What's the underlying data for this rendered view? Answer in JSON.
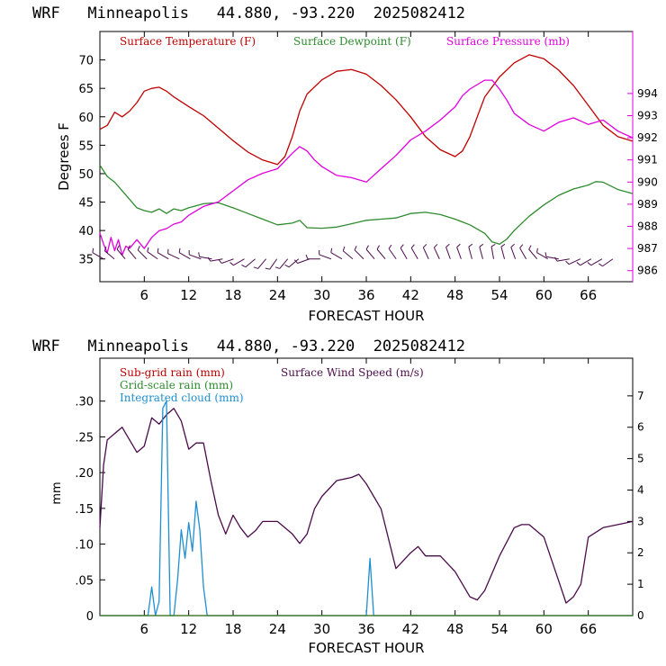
{
  "colors": {
    "temperature": "#c00000",
    "dewpoint": "#2e8b2e",
    "pressure": "#e000e0",
    "wind": "#4b0b4b",
    "cloud": "#1e8fd0",
    "subgrid": "#c00000",
    "gridscale": "#2e8b2e",
    "axis": "#000000",
    "barb": "#4b0b4b"
  },
  "chart_data": [
    {
      "type": "line",
      "title": "WRF   Minneapolis   44.880, -93.220  2025082412",
      "xlabel": "FORECAST HOUR",
      "ylabel": "Degrees F",
      "y2label": "",
      "xlim": [
        0,
        72
      ],
      "ylim": [
        31,
        75
      ],
      "y2lim": [
        985.5,
        996.8
      ],
      "x_ticks": [
        6,
        12,
        18,
        24,
        30,
        36,
        42,
        48,
        54,
        60,
        66
      ],
      "x_tick_labels": [
        "6",
        "12",
        "18",
        "24",
        "30",
        "36",
        "42",
        "48",
        "54",
        "60",
        "66"
      ],
      "y_ticks": [
        35,
        40,
        45,
        50,
        55,
        60,
        65,
        70
      ],
      "y_tick_labels": [
        "35",
        "40",
        "45",
        "50",
        "55",
        "60",
        "65",
        "70"
      ],
      "y2_ticks": [
        986,
        987,
        988,
        989,
        990,
        991,
        992,
        993,
        994
      ],
      "y2_tick_labels": [
        "986",
        "987",
        "988",
        "989",
        "990",
        "991",
        "992",
        "993",
        "994"
      ],
      "legend": [
        "Surface Temperature (F)",
        "Surface Dewpoint (F)",
        "Surface Pressure (mb)"
      ],
      "series": [
        {
          "name": "Surface Temperature (F)",
          "axis": "left",
          "x": [
            0,
            1,
            2,
            3,
            4,
            5,
            6,
            7,
            8,
            9,
            10,
            12,
            14,
            16,
            18,
            20,
            22,
            24,
            25,
            26,
            27,
            28,
            30,
            32,
            34,
            36,
            38,
            40,
            42,
            44,
            46,
            48,
            49,
            50,
            51,
            52,
            54,
            56,
            58,
            60,
            62,
            64,
            66,
            68,
            70,
            72
          ],
          "y": [
            57.8,
            58.5,
            60.8,
            60.0,
            61.0,
            62.5,
            64.5,
            65.0,
            65.2,
            64.5,
            63.5,
            61.8,
            60.2,
            58.0,
            55.8,
            53.8,
            52.4,
            51.6,
            53.0,
            56.5,
            61.0,
            64.0,
            66.5,
            68.0,
            68.3,
            67.5,
            65.5,
            63.0,
            60.0,
            56.5,
            54.2,
            53.0,
            54.0,
            56.5,
            60.0,
            63.5,
            67.0,
            69.5,
            70.9,
            70.2,
            68.2,
            65.5,
            62.0,
            58.5,
            56.5,
            55.7
          ]
        },
        {
          "name": "Surface Dewpoint (F)",
          "axis": "left",
          "x": [
            0,
            1,
            2,
            3,
            4,
            5,
            6,
            7,
            8,
            9,
            10,
            11,
            12,
            14,
            16,
            18,
            20,
            22,
            24,
            26,
            27,
            28,
            30,
            32,
            34,
            36,
            38,
            40,
            42,
            44,
            46,
            48,
            50,
            52,
            53,
            54,
            55,
            56,
            58,
            60,
            62,
            64,
            66,
            67,
            68,
            70,
            72
          ],
          "y": [
            51.5,
            49.5,
            48.5,
            47.0,
            45.5,
            44.0,
            43.5,
            43.2,
            43.8,
            43.0,
            43.8,
            43.5,
            44.0,
            44.7,
            44.9,
            44.0,
            43.0,
            42.0,
            41.0,
            41.3,
            41.8,
            40.5,
            40.4,
            40.6,
            41.2,
            41.8,
            42.0,
            42.2,
            43.0,
            43.2,
            42.8,
            42.0,
            41.0,
            39.5,
            38.0,
            37.6,
            38.5,
            40.0,
            42.5,
            44.5,
            46.2,
            47.3,
            48.0,
            48.6,
            48.5,
            47.2,
            46.5
          ]
        },
        {
          "name": "Surface Pressure (mb)",
          "axis": "right",
          "x": [
            0,
            0.5,
            1,
            1.5,
            2,
            2.5,
            3,
            3.5,
            4,
            5,
            6,
            7,
            8,
            9,
            10,
            11,
            12,
            13,
            14,
            16,
            18,
            20,
            22,
            24,
            26,
            27,
            28,
            29,
            30,
            32,
            34,
            36,
            38,
            40,
            42,
            44,
            46,
            48,
            49,
            50,
            51,
            52,
            53,
            54,
            55,
            56,
            58,
            60,
            62,
            64,
            66,
            68,
            70,
            72
          ],
          "y": [
            987.7,
            987.2,
            986.8,
            987.5,
            986.9,
            987.4,
            986.7,
            987.1,
            987.0,
            987.4,
            987.0,
            987.5,
            987.8,
            987.9,
            988.1,
            988.2,
            988.5,
            988.7,
            988.9,
            989.1,
            989.6,
            990.1,
            990.4,
            990.6,
            991.3,
            991.6,
            991.4,
            991.0,
            990.7,
            990.3,
            990.2,
            990.0,
            990.6,
            991.2,
            991.9,
            992.3,
            992.8,
            993.4,
            993.9,
            994.2,
            994.4,
            994.6,
            994.6,
            994.2,
            993.7,
            993.1,
            992.6,
            992.3,
            992.7,
            992.9,
            992.6,
            992.8,
            992.3,
            992.0
          ]
        }
      ],
      "wind_barb_directions_deg": [
        300,
        310,
        320,
        320,
        315,
        305,
        300,
        295,
        300,
        290,
        280,
        260,
        250,
        240,
        230,
        220,
        215,
        220,
        230,
        250,
        270,
        290,
        300,
        310,
        315,
        320,
        320,
        325,
        330,
        330,
        335,
        335,
        340,
        340,
        345,
        345,
        350,
        345,
        340,
        330,
        320,
        300,
        280,
        260,
        245,
        240,
        240,
        235
      ]
    },
    {
      "type": "line",
      "title": "WRF   Minneapolis   44.880, -93.220  2025082412",
      "xlabel": "FORECAST HOUR",
      "ylabel": "mm",
      "y2label": "",
      "xlim": [
        0,
        72
      ],
      "ylim": [
        0,
        0.36
      ],
      "y2lim": [
        0,
        8.2
      ],
      "x_ticks": [
        6,
        12,
        18,
        24,
        30,
        36,
        42,
        48,
        54,
        60,
        66
      ],
      "x_tick_labels": [
        "6",
        "12",
        "18",
        "24",
        "30",
        "36",
        "42",
        "48",
        "54",
        "60",
        "66"
      ],
      "y_ticks": [
        0,
        0.05,
        0.1,
        0.15,
        0.2,
        0.25,
        0.3
      ],
      "y_tick_labels": [
        "0",
        ".05",
        ".10",
        ".15",
        ".20",
        ".25",
        ".30"
      ],
      "y2_ticks": [
        0,
        1,
        2,
        3,
        4,
        5,
        6,
        7
      ],
      "y2_tick_labels": [
        "0",
        "1",
        "2",
        "3",
        "4",
        "5",
        "6",
        "7"
      ],
      "legend": [
        "Sub-grid rain (mm)",
        "Grid-scale rain (mm)",
        "Integrated cloud (mm)",
        "Surface Wind Speed (m/s)"
      ],
      "series": [
        {
          "name": "Surface Wind Speed (m/s)",
          "axis": "right",
          "x": [
            0,
            0.5,
            1,
            2,
            3,
            4,
            5,
            6,
            7,
            8,
            9,
            10,
            11,
            12,
            13,
            14,
            15,
            16,
            17,
            18,
            19,
            20,
            21,
            22,
            24,
            26,
            27,
            28,
            29,
            30,
            32,
            34,
            35,
            36,
            38,
            40,
            42,
            43,
            44,
            46,
            48,
            50,
            51,
            52,
            54,
            56,
            57,
            58,
            60,
            62,
            63,
            64,
            65,
            66,
            68,
            70,
            72
          ],
          "y": [
            2.8,
            4.8,
            5.6,
            5.8,
            6.0,
            5.6,
            5.2,
            5.4,
            6.3,
            6.1,
            6.4,
            6.6,
            6.2,
            5.3,
            5.5,
            5.5,
            4.3,
            3.2,
            2.6,
            3.2,
            2.8,
            2.5,
            2.7,
            3.0,
            3.0,
            2.6,
            2.3,
            2.6,
            3.4,
            3.8,
            4.3,
            4.4,
            4.5,
            4.2,
            3.4,
            1.5,
            2.0,
            2.2,
            1.9,
            1.9,
            1.4,
            0.6,
            0.5,
            0.8,
            1.9,
            2.8,
            2.9,
            2.9,
            2.5,
            1.1,
            0.4,
            0.6,
            1.0,
            2.5,
            2.8,
            2.9,
            3.0
          ]
        },
        {
          "name": "Integrated cloud (mm)",
          "axis": "left",
          "x": [
            0,
            6.5,
            7,
            7.5,
            8,
            8.5,
            9,
            9.5,
            10,
            10.5,
            11,
            11.5,
            12,
            12.5,
            13,
            13.5,
            14,
            14.5,
            36,
            36.5,
            37,
            72
          ],
          "y": [
            0,
            0,
            0.04,
            0,
            0.02,
            0.29,
            0.3,
            0,
            0,
            0.05,
            0.12,
            0.08,
            0.13,
            0.09,
            0.16,
            0.12,
            0.04,
            0,
            0,
            0.08,
            0,
            0
          ]
        },
        {
          "name": "Sub-grid rain (mm)",
          "axis": "left",
          "x": [
            0,
            72
          ],
          "y": [
            0,
            0
          ]
        },
        {
          "name": "Grid-scale rain (mm)",
          "axis": "left",
          "x": [
            0,
            72
          ],
          "y": [
            0,
            0
          ]
        }
      ]
    }
  ]
}
